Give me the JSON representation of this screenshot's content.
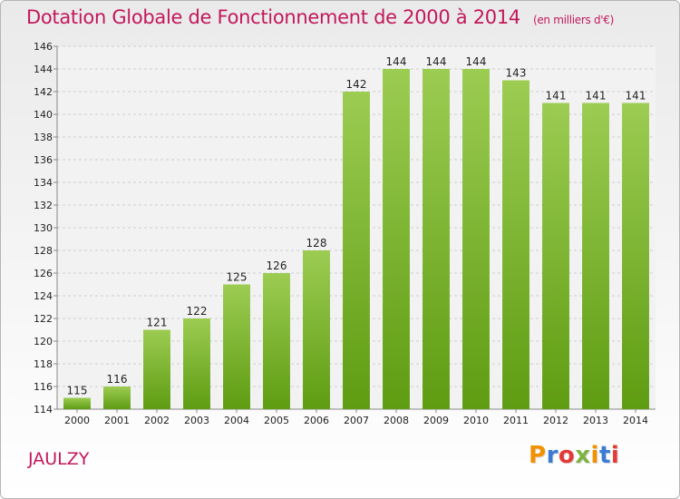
{
  "header": {
    "title": "Dotation Globale de Fonctionnement de 2000 à 2014",
    "subtitle": "(en milliers d'€)"
  },
  "footer": {
    "commune": "JAULZY",
    "logo": "Proxiti",
    "logo_colors": [
      "#f39200",
      "#3a7bd5",
      "#e53935",
      "#7cb342",
      "#f39200",
      "#3a7bd5",
      "#e53935"
    ]
  },
  "chart_data": {
    "type": "bar",
    "categories": [
      "2000",
      "2001",
      "2002",
      "2003",
      "2004",
      "2005",
      "2006",
      "2007",
      "2008",
      "2009",
      "2010",
      "2011",
      "2012",
      "2013",
      "2014"
    ],
    "values": [
      115,
      116,
      121,
      122,
      125,
      126,
      128,
      142,
      144,
      144,
      144,
      143,
      141,
      141,
      141
    ],
    "ylim": [
      114,
      146
    ],
    "yticks": [
      114,
      116,
      118,
      120,
      122,
      124,
      126,
      128,
      130,
      132,
      134,
      136,
      138,
      140,
      142,
      144,
      146
    ],
    "grid": true,
    "bar_color_top": "#9ccc52",
    "bar_color_bottom": "#5e9c12"
  }
}
